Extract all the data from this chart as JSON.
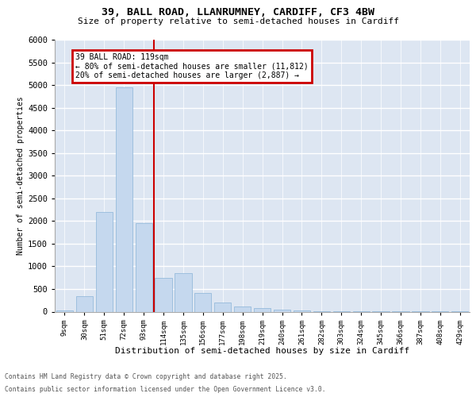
{
  "title_line1": "39, BALL ROAD, LLANRUMNEY, CARDIFF, CF3 4BW",
  "title_line2": "Size of property relative to semi-detached houses in Cardiff",
  "xlabel": "Distribution of semi-detached houses by size in Cardiff",
  "ylabel": "Number of semi-detached properties",
  "categories": [
    "9sqm",
    "30sqm",
    "51sqm",
    "72sqm",
    "93sqm",
    "114sqm",
    "135sqm",
    "156sqm",
    "177sqm",
    "198sqm",
    "219sqm",
    "240sqm",
    "261sqm",
    "282sqm",
    "303sqm",
    "324sqm",
    "345sqm",
    "366sqm",
    "387sqm",
    "408sqm",
    "429sqm"
  ],
  "values": [
    30,
    350,
    2200,
    4950,
    1950,
    750,
    850,
    420,
    200,
    120,
    75,
    40,
    25,
    15,
    10,
    5,
    3,
    2,
    1,
    1,
    1
  ],
  "bar_color": "#c5d8ee",
  "bar_edge_color": "#8ab4d8",
  "vline_color": "#cc0000",
  "vline_position": 4.5,
  "annotation_title": "39 BALL ROAD: 119sqm",
  "annotation_line2": "← 80% of semi-detached houses are smaller (11,812)",
  "annotation_line3": "20% of semi-detached houses are larger (2,887) →",
  "annotation_box_color": "#cc0000",
  "ylim_max": 6000,
  "ytick_step": 500,
  "bg_color": "#dde6f2",
  "grid_color": "#ffffff",
  "footer_line1": "Contains HM Land Registry data © Crown copyright and database right 2025.",
  "footer_line2": "Contains public sector information licensed under the Open Government Licence v3.0."
}
